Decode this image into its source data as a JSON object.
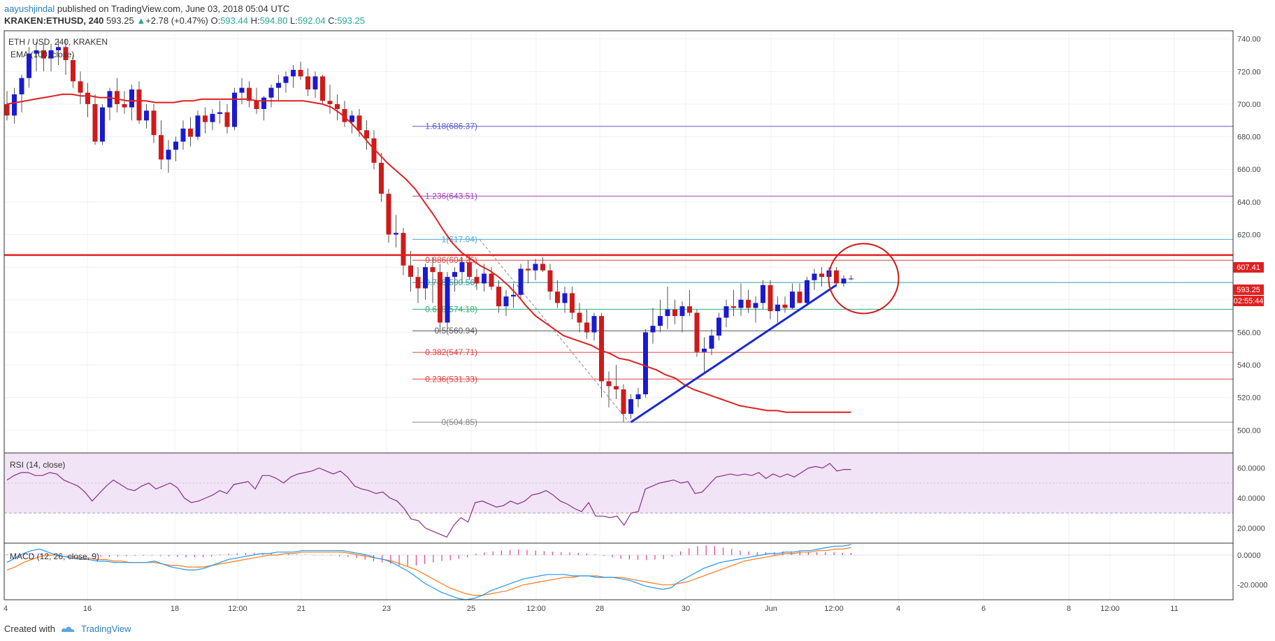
{
  "header": {
    "author": "aayushjindal",
    "published": " published on TradingView.com, June 03, 2018 05:04 UTC",
    "symbol": "KRAKEN:ETHUSD, 240",
    "price": "593.25",
    "change_arrow": "▲",
    "change": "+2.78 (+0.47%)",
    "o_label": "O:",
    "o": "593.44",
    "h_label": "H:",
    "h": "594.80",
    "l_label": "L:",
    "l": "592.04",
    "c_label": "C:",
    "c": "593.25"
  },
  "legend": {
    "title": "ETH / USD, 240, KRAKEN",
    "ema": "EMA (100, close)",
    "rsi": "RSI (14, close)",
    "macd": "MACD (12, 26, close, 9)"
  },
  "price_tags": {
    "level": "607.41",
    "last": "593.25",
    "timer": "02:55:44"
  },
  "footer": {
    "created": "Created with",
    "brand": "TradingView",
    "logo_icon": "tradingview-logo-icon"
  },
  "colors": {
    "up": "#1a1ad0",
    "down": "#d01a1a",
    "ema": "#e02020",
    "rsi": "#8a2b8a",
    "rsi_band": "#f1e4f6",
    "macd": "#2196f3",
    "signal": "#ff7a1a",
    "hist": "#e0408a",
    "trend": "#1a2bd0",
    "circle": "#d01a1a",
    "resist": "#e02020"
  },
  "chart_data": [
    {
      "type": "candlestick",
      "title": "ETH / USD, 240, KRAKEN",
      "x_ticks": [
        "4",
        "16",
        "18",
        "12:00",
        "21",
        "23",
        "25",
        "12:00",
        "28",
        "30",
        "Jun",
        "12:00",
        "4",
        "6",
        "8",
        "12:00",
        "11"
      ],
      "y_ticks": [
        500,
        520,
        540,
        560,
        580,
        600,
        620,
        640,
        660,
        680,
        700,
        720,
        740
      ],
      "ylim": [
        486,
        745
      ],
      "candles": [
        [
          700,
          708,
          690,
          693
        ],
        [
          693,
          710,
          688,
          706
        ],
        [
          706,
          718,
          695,
          716
        ],
        [
          716,
          735,
          710,
          731
        ],
        [
          731,
          738,
          720,
          733
        ],
        [
          733,
          737,
          720,
          728
        ],
        [
          728,
          736,
          720,
          733
        ],
        [
          733,
          740,
          724,
          735
        ],
        [
          735,
          740,
          718,
          727
        ],
        [
          727,
          730,
          710,
          714
        ],
        [
          714,
          720,
          700,
          707
        ],
        [
          707,
          713,
          692,
          700
        ],
        [
          700,
          706,
          675,
          677
        ],
        [
          677,
          700,
          675,
          698
        ],
        [
          698,
          710,
          690,
          708
        ],
        [
          708,
          716,
          695,
          700
        ],
        [
          700,
          708,
          694,
          698
        ],
        [
          698,
          712,
          690,
          709
        ],
        [
          709,
          714,
          688,
          690
        ],
        [
          690,
          700,
          685,
          696
        ],
        [
          696,
          700,
          676,
          681
        ],
        [
          681,
          690,
          660,
          666
        ],
        [
          666,
          678,
          658,
          672
        ],
        [
          672,
          680,
          665,
          677
        ],
        [
          677,
          690,
          672,
          685
        ],
        [
          685,
          692,
          674,
          680
        ],
        [
          680,
          696,
          678,
          693
        ],
        [
          693,
          698,
          682,
          689
        ],
        [
          689,
          697,
          684,
          694
        ],
        [
          694,
          702,
          688,
          695
        ],
        [
          695,
          700,
          682,
          686
        ],
        [
          686,
          710,
          684,
          707
        ],
        [
          707,
          716,
          700,
          710
        ],
        [
          710,
          714,
          698,
          702
        ],
        [
          702,
          710,
          694,
          697
        ],
        [
          697,
          705,
          690,
          704
        ],
        [
          704,
          712,
          698,
          710
        ],
        [
          710,
          718,
          702,
          713
        ],
        [
          713,
          720,
          707,
          717
        ],
        [
          717,
          724,
          710,
          721
        ],
        [
          721,
          726,
          715,
          717
        ],
        [
          717,
          722,
          705,
          709
        ],
        [
          709,
          720,
          704,
          717
        ],
        [
          717,
          718,
          700,
          702
        ],
        [
          702,
          712,
          694,
          700
        ],
        [
          700,
          706,
          690,
          697
        ],
        [
          697,
          702,
          686,
          689
        ],
        [
          689,
          696,
          682,
          693
        ],
        [
          693,
          697,
          680,
          684
        ],
        [
          684,
          690,
          672,
          679
        ],
        [
          679,
          684,
          660,
          664
        ],
        [
          664,
          670,
          640,
          645
        ],
        [
          645,
          648,
          615,
          620
        ],
        [
          620,
          632,
          612,
          621
        ],
        [
          621,
          624,
          595,
          601
        ],
        [
          601,
          610,
          585,
          594
        ],
        [
          594,
          600,
          578,
          587
        ],
        [
          587,
          602,
          580,
          600
        ],
        [
          600,
          606,
          578,
          597
        ],
        [
          597,
          602,
          560,
          566
        ],
        [
          566,
          597,
          562,
          594
        ],
        [
          594,
          600,
          585,
          597
        ],
        [
          597,
          606,
          590,
          603
        ],
        [
          603,
          608,
          592,
          594
        ],
        [
          594,
          599,
          586,
          590
        ],
        [
          590,
          602,
          585,
          596
        ],
        [
          596,
          600,
          586,
          588
        ],
        [
          588,
          592,
          572,
          576
        ],
        [
          576,
          586,
          570,
          582
        ],
        [
          582,
          590,
          575,
          583
        ],
        [
          583,
          602,
          580,
          599
        ],
        [
          599,
          604,
          590,
          598
        ],
        [
          598,
          605,
          592,
          602
        ],
        [
          602,
          606,
          597,
          598
        ],
        [
          598,
          602,
          580,
          585
        ],
        [
          585,
          592,
          575,
          578
        ],
        [
          578,
          588,
          572,
          584
        ],
        [
          584,
          588,
          568,
          572
        ],
        [
          572,
          578,
          560,
          566
        ],
        [
          566,
          574,
          556,
          560
        ],
        [
          560,
          572,
          555,
          570
        ],
        [
          570,
          572,
          520,
          530
        ],
        [
          530,
          536,
          514,
          527
        ],
        [
          527,
          540,
          519,
          525
        ],
        [
          525,
          528,
          505,
          510
        ],
        [
          510,
          522,
          507,
          519
        ],
        [
          519,
          526,
          514,
          522
        ],
        [
          522,
          562,
          520,
          560
        ],
        [
          560,
          575,
          553,
          564
        ],
        [
          564,
          580,
          560,
          570
        ],
        [
          570,
          588,
          562,
          574
        ],
        [
          574,
          580,
          565,
          570
        ],
        [
          570,
          579,
          560,
          576
        ],
        [
          576,
          586,
          570,
          572
        ],
        [
          572,
          574,
          545,
          548
        ],
        [
          548,
          557,
          535,
          550
        ],
        [
          550,
          562,
          546,
          558
        ],
        [
          558,
          572,
          555,
          569
        ],
        [
          569,
          580,
          563,
          576
        ],
        [
          576,
          586,
          570,
          575
        ],
        [
          575,
          590,
          570,
          580
        ],
        [
          580,
          586,
          572,
          575
        ],
        [
          575,
          582,
          566,
          578
        ],
        [
          578,
          592,
          574,
          589
        ],
        [
          589,
          592,
          568,
          573
        ],
        [
          573,
          582,
          566,
          577
        ],
        [
          577,
          582,
          572,
          575
        ],
        [
          575,
          590,
          574,
          585
        ],
        [
          585,
          590,
          578,
          578
        ],
        [
          578,
          594,
          576,
          592
        ],
        [
          592,
          599,
          586,
          596
        ],
        [
          596,
          600,
          588,
          594
        ],
        [
          594,
          600,
          588,
          598
        ],
        [
          598,
          600,
          588,
          590
        ],
        [
          590,
          595,
          588,
          593
        ],
        [
          593,
          595,
          592,
          593
        ]
      ],
      "ema_100": [
        700,
        701,
        702,
        703,
        704,
        705,
        706,
        706,
        705,
        705,
        704,
        704,
        703,
        702,
        702,
        702,
        701,
        701,
        701,
        702,
        702,
        703,
        703,
        703,
        703,
        703,
        703,
        702,
        702,
        702,
        702,
        702,
        702,
        701,
        700,
        698,
        694,
        689,
        683,
        676,
        670,
        664,
        659,
        654,
        648,
        640,
        632,
        623,
        615,
        609,
        605,
        601,
        598,
        594,
        589,
        583,
        576,
        570,
        566,
        562,
        558,
        556,
        554,
        552,
        549,
        547,
        544,
        543,
        541,
        539,
        537,
        534,
        532,
        528,
        525,
        523,
        521,
        519,
        517,
        515,
        514,
        513,
        512,
        512,
        511,
        511,
        511,
        511,
        511,
        511,
        511,
        511
      ],
      "fibonacci": [
        {
          "label": "1.618(686.37)",
          "value": 686.37,
          "color": "#5a5ad0"
        },
        {
          "label": "1.236(643.51)",
          "value": 643.51,
          "color": "#a040c0"
        },
        {
          "label": "1(617.04)",
          "value": 617.04,
          "color": "#4aa8d8"
        },
        {
          "label": "0.886(604.25)",
          "value": 604.25,
          "color": "#e04040"
        },
        {
          "label": "0.786(590.56)",
          "value": 590.56,
          "color": "#26a0a0"
        },
        {
          "label": "0.618(574.18)",
          "value": 574.18,
          "color": "#26b070"
        },
        {
          "label": "0.5(560.94)",
          "value": 560.94,
          "color": "#555555"
        },
        {
          "label": "0.382(547.71)",
          "value": 547.71,
          "color": "#e04040"
        },
        {
          "label": "0.236(531.33)",
          "value": 531.33,
          "color": "#e04040"
        },
        {
          "label": "0(504.85)",
          "value": 504.85,
          "color": "#888888"
        }
      ],
      "resistance": 607.41,
      "trendline": [
        [
          85,
          504.85
        ],
        [
          113,
          589
        ]
      ]
    },
    {
      "type": "line",
      "title": "RSI (14, close)",
      "ylim": [
        10,
        70
      ],
      "band": [
        30,
        70
      ],
      "midline": 50,
      "y_ticks": [
        20,
        40,
        60
      ],
      "values": [
        52,
        55,
        57,
        57,
        55,
        55,
        57,
        56,
        52,
        50,
        48,
        44,
        38,
        43,
        48,
        52,
        49,
        46,
        45,
        48,
        50,
        46,
        48,
        50,
        47,
        40,
        37,
        38,
        40,
        42,
        45,
        43,
        49,
        50,
        51,
        46,
        55,
        55,
        53,
        50,
        54,
        56,
        57,
        58,
        60,
        58,
        56,
        58,
        54,
        48,
        46,
        45,
        43,
        44,
        40,
        38,
        33,
        26,
        25,
        20,
        18,
        16,
        14,
        22,
        27,
        24,
        37,
        38,
        36,
        34,
        35,
        38,
        36,
        38,
        42,
        43,
        45,
        42,
        38,
        36,
        33,
        31,
        37,
        28,
        28,
        27,
        28,
        22,
        30,
        31,
        46,
        48,
        50,
        51,
        52,
        50,
        51,
        43,
        44,
        49,
        54,
        55,
        56,
        55,
        56,
        55,
        57,
        53,
        56,
        54,
        56,
        54,
        57,
        60,
        61,
        60,
        63,
        58,
        59,
        59
      ]
    },
    {
      "type": "macd",
      "title": "MACD (12, 26, close, 9)",
      "ylim": [
        -30,
        8
      ],
      "y_ticks": [
        0,
        -20
      ],
      "macd": [
        -5,
        -2,
        1,
        3,
        4,
        2,
        0,
        -1,
        -2,
        -3,
        -3,
        -4,
        -4,
        -5,
        -5,
        -5,
        -5,
        -5,
        -4,
        -6,
        -8,
        -9,
        -10,
        -10,
        -9,
        -7,
        -5,
        -3,
        -2,
        -1,
        0,
        1,
        1,
        2,
        2,
        2,
        3,
        3,
        3,
        3,
        3,
        3,
        2,
        1,
        0,
        -2,
        -3,
        -5,
        -8,
        -11,
        -15,
        -19,
        -22,
        -25,
        -27,
        -29,
        -30,
        -29,
        -27,
        -24,
        -22,
        -20,
        -18,
        -16,
        -15,
        -14,
        -13,
        -13,
        -13,
        -14,
        -14,
        -14,
        -15,
        -15,
        -15,
        -16,
        -17,
        -19,
        -21,
        -22,
        -23,
        -22,
        -18,
        -15,
        -12,
        -9,
        -7,
        -5,
        -4,
        -3,
        -2,
        -1,
        0,
        1,
        1,
        2,
        2,
        3,
        3,
        4,
        5,
        6,
        6,
        7
      ],
      "signal": [
        -10,
        -8,
        -5,
        -3,
        -1,
        0,
        0,
        -1,
        -1,
        -2,
        -2,
        -3,
        -3,
        -4,
        -4,
        -5,
        -5,
        -5,
        -5,
        -6,
        -7,
        -7,
        -8,
        -8,
        -8,
        -7,
        -6,
        -5,
        -4,
        -3,
        -2,
        -1,
        0,
        0,
        1,
        1,
        2,
        2,
        2,
        2,
        2,
        2,
        1,
        0,
        -1,
        -2,
        -3,
        -4,
        -6,
        -8,
        -10,
        -13,
        -16,
        -19,
        -22,
        -24,
        -26,
        -27,
        -27,
        -26,
        -25,
        -24,
        -22,
        -20,
        -19,
        -18,
        -17,
        -16,
        -15,
        -15,
        -14,
        -14,
        -14,
        -15,
        -15,
        -15,
        -16,
        -17,
        -18,
        -19,
        -20,
        -20,
        -19,
        -18,
        -16,
        -14,
        -12,
        -10,
        -8,
        -6,
        -4,
        -3,
        -2,
        -1,
        0,
        1,
        1,
        2,
        2,
        3,
        3,
        4,
        4,
        5
      ],
      "histogram": [
        0.5,
        0.8,
        1.0,
        1.2,
        1.0,
        0.6,
        0.3,
        0.2,
        -0.3,
        -0.6,
        -1.0,
        -1.2,
        -1.3,
        -1.0,
        -0.8,
        -0.6,
        -0.5,
        -0.4,
        -0.6,
        -0.9,
        -1.2,
        -1.5,
        -1.6,
        -1.4,
        -1.0,
        0.5,
        0.9,
        1.2,
        1.4,
        1.4,
        1.2,
        1.0,
        0.8,
        0.6,
        0.4,
        0.3,
        0.2,
        0.2,
        -0.3,
        -0.8,
        -1.3,
        -2.0,
        -3.0,
        -4.0,
        -5.0,
        -6.0,
        -7.0,
        -7.5,
        -7.0,
        -6.0,
        -5.0,
        -4.0,
        -3.5,
        -2.5,
        -1.5,
        1.0,
        1.8,
        2.5,
        3.0,
        3.5,
        3.8,
        3.5,
        3.0,
        2.6,
        2.2,
        2.0,
        1.8,
        1.5,
        1.0,
        0.5,
        -0.5,
        -1.5,
        -2.5,
        -3.0,
        -3.2,
        -3.4,
        -3.0,
        -2.8,
        -1.0,
        2.5,
        4.5,
        6.0,
        6.5,
        6.0,
        5.0,
        4.0,
        3.0,
        2.5,
        2.0,
        2.0,
        2.0,
        2.5,
        2.5,
        2.5,
        2.0,
        2.0,
        2.0,
        2.0,
        1.5,
        1.5
      ]
    }
  ]
}
